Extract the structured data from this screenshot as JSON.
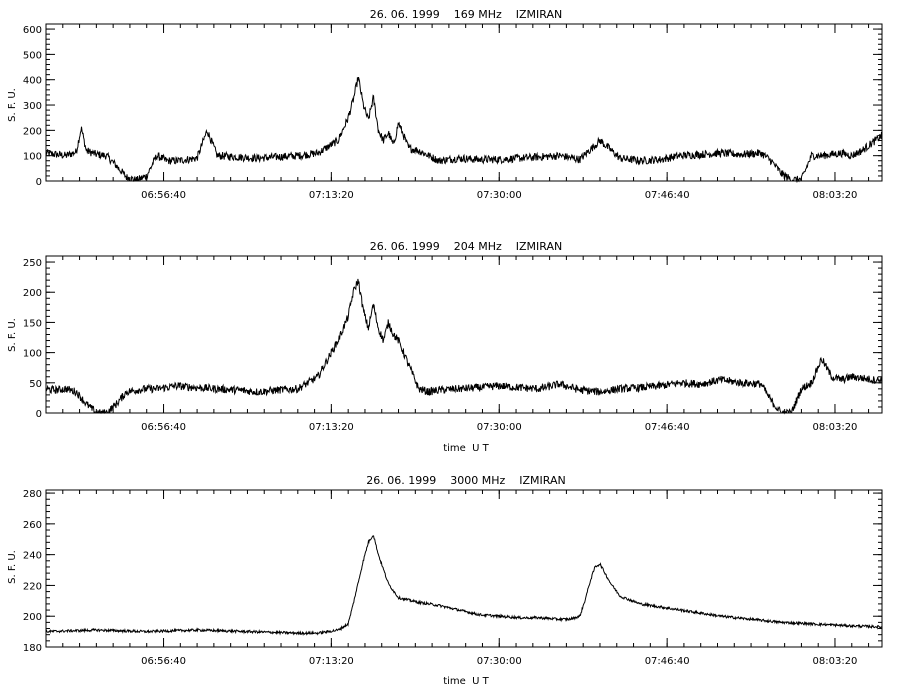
{
  "chart_data": [
    {
      "type": "line",
      "title": "26. 06. 1999    169 MHz    IZMIRAN",
      "ylabel": "S. F. U.",
      "xlabel": "",
      "x_tick_labels": [
        "06:56:40",
        "07:13:20",
        "07:30:00",
        "07:46:40",
        "08:03:20"
      ],
      "x_tick_values_min": [
        416.67,
        433.33,
        450.0,
        466.67,
        483.33
      ],
      "xlim_min": [
        405,
        488
      ],
      "ylim": [
        0,
        620
      ],
      "y_tick_values": [
        0,
        100,
        200,
        300,
        400,
        500,
        600
      ],
      "y_tick_labels": [
        "0",
        "100",
        "200",
        "300",
        "400",
        "500",
        "600"
      ],
      "series": [
        {
          "x_min": [
            405,
            406,
            407,
            408,
            408.5,
            409,
            410,
            411,
            412,
            413,
            414,
            415,
            416,
            417,
            418,
            419,
            420,
            421,
            422,
            424,
            426,
            428,
            430,
            432,
            434,
            435,
            435.5,
            436,
            436.5,
            437,
            437.5,
            438,
            438.5,
            439,
            439.5,
            440,
            441,
            442,
            443,
            444,
            446,
            448,
            450,
            452,
            454,
            456,
            458,
            460,
            462,
            464,
            466,
            468,
            470,
            472,
            474,
            476,
            477,
            478,
            479,
            480,
            481,
            482,
            483,
            484,
            485,
            486,
            487,
            488
          ],
          "y": [
            110,
            105,
            100,
            115,
            210,
            120,
            105,
            100,
            60,
            15,
            3,
            20,
            100,
            80,
            80,
            85,
            90,
            200,
            100,
            95,
            90,
            95,
            100,
            110,
            160,
            250,
            320,
            410,
            300,
            240,
            330,
            200,
            160,
            190,
            140,
            230,
            130,
            120,
            100,
            80,
            90,
            85,
            85,
            90,
            95,
            100,
            85,
            160,
            90,
            80,
            85,
            100,
            105,
            110,
            105,
            110,
            80,
            30,
            5,
            5,
            100,
            100,
            105,
            110,
            100,
            120,
            150,
            180
          ]
        }
      ]
    },
    {
      "type": "line",
      "title": "26. 06. 1999    204 MHz    IZMIRAN",
      "ylabel": "S. F. U.",
      "xlabel": "time  U T",
      "x_tick_labels": [
        "06:56:40",
        "07:13:20",
        "07:30:00",
        "07:46:40",
        "08:03:20"
      ],
      "x_tick_values_min": [
        416.67,
        433.33,
        450.0,
        466.67,
        483.33
      ],
      "xlim_min": [
        405,
        488
      ],
      "ylim": [
        0,
        260
      ],
      "y_tick_values": [
        0,
        50,
        100,
        150,
        200,
        250
      ],
      "y_tick_labels": [
        "0",
        "50",
        "100",
        "150",
        "200",
        "250"
      ],
      "series": [
        {
          "x_min": [
            405,
            406,
            407,
            408,
            409,
            410,
            411,
            412,
            413,
            414,
            415,
            416,
            418,
            420,
            422,
            424,
            426,
            428,
            430,
            432,
            434,
            435,
            435.5,
            436,
            436.5,
            437,
            437.5,
            438,
            438.5,
            439,
            439.5,
            440,
            441,
            442,
            443,
            444,
            446,
            448,
            450,
            452,
            454,
            456,
            458,
            460,
            462,
            464,
            466,
            468,
            470,
            472,
            474,
            476,
            477,
            478,
            479,
            480,
            481,
            482,
            483,
            484,
            485,
            486,
            487,
            488
          ],
          "y": [
            40,
            38,
            40,
            35,
            15,
            0,
            0,
            15,
            35,
            38,
            40,
            40,
            45,
            42,
            40,
            38,
            35,
            38,
            40,
            60,
            120,
            160,
            200,
            220,
            170,
            140,
            180,
            140,
            120,
            150,
            130,
            120,
            80,
            40,
            35,
            38,
            40,
            42,
            45,
            42,
            40,
            48,
            38,
            35,
            40,
            42,
            45,
            50,
            48,
            55,
            50,
            48,
            20,
            0,
            0,
            40,
            50,
            90,
            60,
            55,
            60,
            58,
            55,
            55
          ]
        }
      ]
    },
    {
      "type": "line",
      "title": "26. 06. 1999    3000 MHz    IZMIRAN",
      "ylabel": "S. F. U.",
      "xlabel": "time  U T",
      "x_tick_labels": [
        "06:56:40",
        "07:13:20",
        "07:30:00",
        "07:46:40",
        "08:03:20"
      ],
      "x_tick_values_min": [
        416.67,
        433.33,
        450.0,
        466.67,
        483.33
      ],
      "xlim_min": [
        405,
        488
      ],
      "ylim": [
        180,
        282
      ],
      "y_tick_values": [
        180,
        200,
        220,
        240,
        260,
        280
      ],
      "y_tick_labels": [
        "180",
        "200",
        "220",
        "240",
        "260",
        "280"
      ],
      "series": [
        {
          "x_min": [
            405,
            410,
            415,
            420,
            425,
            430,
            432,
            433,
            434,
            435,
            435.5,
            436,
            436.5,
            437,
            437.5,
            438,
            439,
            440,
            442,
            444,
            446,
            448,
            450,
            452,
            454,
            456,
            457,
            458,
            458.5,
            459,
            459.5,
            460,
            461,
            462,
            464,
            466,
            468,
            470,
            472,
            475,
            478,
            481,
            484,
            488
          ],
          "y": [
            190,
            191,
            190,
            191,
            190,
            189,
            189,
            190,
            191,
            195,
            208,
            222,
            236,
            248,
            253,
            240,
            221,
            212,
            209,
            207,
            204,
            201,
            200,
            199,
            199,
            198,
            198,
            200,
            210,
            222,
            232,
            234,
            222,
            213,
            208,
            206,
            204,
            202,
            200,
            198,
            196,
            195,
            194,
            193
          ]
        }
      ]
    }
  ]
}
